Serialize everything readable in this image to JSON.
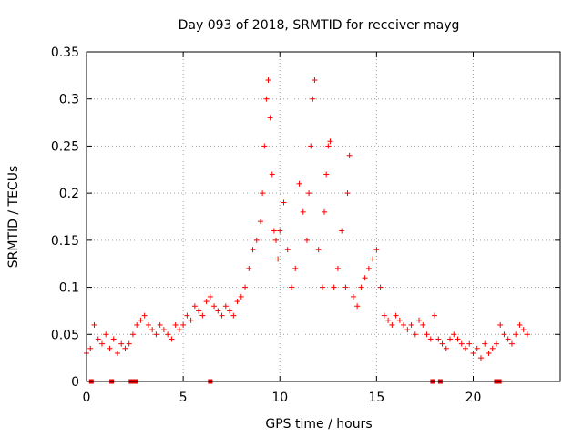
{
  "chart_data": {
    "type": "scatter",
    "title": "Day 093 of 2018, SRMTID for receiver mayg",
    "xlabel": "GPS time / hours",
    "ylabel": "SRMTID / TECUs",
    "xlim": [
      0,
      24.5
    ],
    "ylim": [
      0,
      0.35
    ],
    "xticks": [
      0,
      5,
      10,
      15,
      20
    ],
    "xtick_labels": [
      "0",
      "5",
      "10",
      "15",
      "20"
    ],
    "yticks": [
      0,
      0.05,
      0.1,
      0.15,
      0.2,
      0.25,
      0.3,
      0.35
    ],
    "ytick_labels": [
      "0",
      "0.05",
      "0.1",
      "0.15",
      "0.2",
      "0.25",
      "0.3",
      "0.35"
    ],
    "grid": true,
    "marker": "+",
    "color": "#ff0000",
    "series": [
      {
        "name": "SRMTID",
        "x": [
          0.0,
          0.2,
          0.4,
          0.6,
          0.8,
          1.0,
          1.2,
          1.4,
          1.6,
          1.8,
          2.0,
          2.2,
          2.4,
          2.6,
          2.8,
          3.0,
          3.2,
          3.4,
          3.6,
          3.8,
          4.0,
          4.2,
          4.4,
          4.6,
          4.8,
          5.0,
          5.2,
          5.4,
          5.6,
          5.8,
          6.0,
          6.2,
          6.4,
          6.6,
          6.8,
          7.0,
          7.2,
          7.4,
          7.6,
          7.8,
          8.0,
          8.2,
          8.4,
          8.6,
          8.8,
          9.0,
          9.1,
          9.2,
          9.3,
          9.4,
          9.5,
          9.6,
          9.7,
          9.8,
          9.9,
          10.0,
          10.2,
          10.4,
          10.6,
          10.8,
          11.0,
          11.2,
          11.4,
          11.5,
          11.6,
          11.7,
          11.8,
          12.0,
          12.2,
          12.3,
          12.4,
          12.5,
          12.6,
          12.8,
          13.0,
          13.2,
          13.4,
          13.5,
          13.6,
          13.8,
          14.0,
          14.2,
          14.4,
          14.6,
          14.8,
          15.0,
          15.2,
          15.4,
          15.6,
          15.8,
          16.0,
          16.2,
          16.4,
          16.6,
          16.8,
          17.0,
          17.2,
          17.4,
          17.6,
          17.8,
          18.0,
          18.2,
          18.4,
          18.6,
          18.8,
          19.0,
          19.2,
          19.4,
          19.6,
          19.8,
          20.0,
          20.2,
          20.4,
          20.6,
          20.8,
          21.0,
          21.2,
          21.4,
          21.6,
          21.8,
          22.0,
          22.2,
          22.4,
          22.6,
          22.8
        ],
        "y": [
          0.03,
          0.035,
          0.06,
          0.045,
          0.04,
          0.05,
          0.035,
          0.045,
          0.03,
          0.04,
          0.035,
          0.04,
          0.05,
          0.06,
          0.065,
          0.07,
          0.06,
          0.055,
          0.05,
          0.06,
          0.055,
          0.05,
          0.045,
          0.06,
          0.055,
          0.06,
          0.07,
          0.065,
          0.08,
          0.075,
          0.07,
          0.085,
          0.09,
          0.08,
          0.075,
          0.07,
          0.08,
          0.075,
          0.07,
          0.085,
          0.09,
          0.1,
          0.12,
          0.14,
          0.15,
          0.17,
          0.2,
          0.25,
          0.3,
          0.32,
          0.28,
          0.22,
          0.16,
          0.15,
          0.13,
          0.16,
          0.19,
          0.14,
          0.1,
          0.12,
          0.21,
          0.18,
          0.15,
          0.2,
          0.25,
          0.3,
          0.32,
          0.14,
          0.1,
          0.18,
          0.22,
          0.25,
          0.255,
          0.1,
          0.12,
          0.16,
          0.1,
          0.2,
          0.24,
          0.09,
          0.08,
          0.1,
          0.11,
          0.12,
          0.13,
          0.14,
          0.1,
          0.07,
          0.065,
          0.06,
          0.07,
          0.065,
          0.06,
          0.055,
          0.06,
          0.05,
          0.065,
          0.06,
          0.05,
          0.045,
          0.07,
          0.045,
          0.04,
          0.035,
          0.045,
          0.05,
          0.045,
          0.04,
          0.035,
          0.04,
          0.03,
          0.035,
          0.025,
          0.04,
          0.03,
          0.035,
          0.04,
          0.06,
          0.05,
          0.045,
          0.04,
          0.05,
          0.06,
          0.055,
          0.05
        ]
      }
    ],
    "gap_markers_x": [
      0.25,
      1.3,
      2.3,
      2.4,
      2.55,
      6.4,
      17.9,
      18.3,
      21.2,
      21.35
    ]
  }
}
